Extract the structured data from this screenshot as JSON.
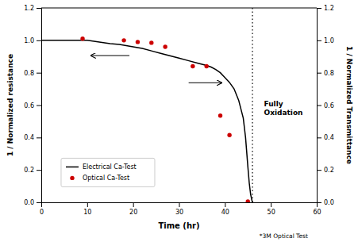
{
  "chart_data": {
    "type": "line",
    "x_label": "Time (hr)",
    "y_label": "1 / Normalized resistance",
    "y2_label": "1 / Normalized Transmittance",
    "xlim": [
      0,
      60
    ],
    "xticks": [
      0,
      10,
      20,
      30,
      40,
      50,
      60
    ],
    "ylim": [
      0.0,
      1.2
    ],
    "yticks": [
      {
        "value": 0.0,
        "label": "0.0"
      },
      0.2,
      0.4,
      0.6,
      0.8,
      {
        "value": 1.0,
        "label": "1.0"
      },
      1.2
    ],
    "y2lim": [
      0.0,
      1.2
    ],
    "y2ticks": [
      {
        "value": 0.0,
        "label": "0.0"
      },
      0.2,
      0.4,
      0.6,
      0.8,
      {
        "value": 1.0,
        "label": "1.0"
      },
      1.2
    ],
    "grid": false,
    "legend": "lower left",
    "series": [
      {
        "name": "Electrical Ca-Test",
        "type": "line",
        "color": "#000000",
        "x": [
          0,
          5,
          10,
          15,
          17,
          18,
          20,
          22,
          24,
          26,
          28,
          30,
          32,
          34,
          36,
          37,
          38,
          39,
          40,
          41,
          42,
          43,
          44,
          44.5,
          45,
          45.3,
          45.6,
          45.9,
          46.0
        ],
        "values": [
          1.0,
          1.0,
          1.0,
          0.98,
          0.975,
          0.97,
          0.96,
          0.95,
          0.935,
          0.92,
          0.905,
          0.89,
          0.875,
          0.86,
          0.845,
          0.835,
          0.82,
          0.8,
          0.77,
          0.74,
          0.7,
          0.63,
          0.52,
          0.4,
          0.22,
          0.12,
          0.05,
          0.01,
          0.0
        ]
      },
      {
        "name": "Optical Ca-Test",
        "type": "scatter",
        "color": "#cc0000",
        "x": [
          9,
          18,
          21,
          24,
          27,
          33,
          36,
          39,
          41,
          45
        ],
        "values": [
          1.01,
          1.0,
          0.99,
          0.985,
          0.96,
          0.84,
          0.84,
          0.535,
          0.415,
          0.005
        ]
      }
    ],
    "reference_lines": [
      {
        "x": 46,
        "color": "#000000",
        "line_style": "dotted"
      }
    ],
    "annotations": [
      {
        "text": "Fully\nOxidation",
        "x": 48.5,
        "y": 0.58
      },
      {
        "text": "*3M Optical Test"
      }
    ]
  }
}
